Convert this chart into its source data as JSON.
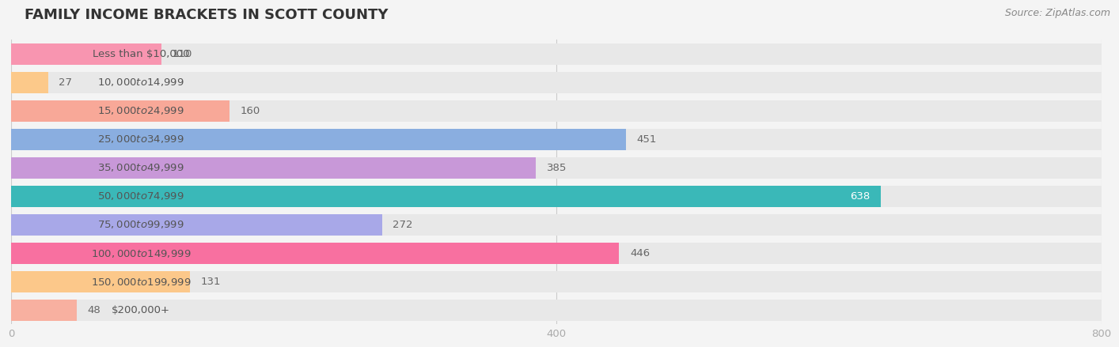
{
  "title": "FAMILY INCOME BRACKETS IN SCOTT COUNTY",
  "source": "Source: ZipAtlas.com",
  "categories": [
    "Less than $10,000",
    "$10,000 to $14,999",
    "$15,000 to $24,999",
    "$25,000 to $34,999",
    "$35,000 to $49,999",
    "$50,000 to $74,999",
    "$75,000 to $99,999",
    "$100,000 to $149,999",
    "$150,000 to $199,999",
    "$200,000+"
  ],
  "values": [
    110,
    27,
    160,
    451,
    385,
    638,
    272,
    446,
    131,
    48
  ],
  "bar_colors": [
    "#f895b0",
    "#fcc98a",
    "#f8a898",
    "#8aaee0",
    "#c898d8",
    "#3ab8b8",
    "#a8a8e8",
    "#f870a0",
    "#fcc88a",
    "#f8b0a0"
  ],
  "xlim": [
    0,
    800
  ],
  "xticks": [
    0,
    400,
    800
  ],
  "background_color": "#f4f4f4",
  "bar_bg_color": "#e8e8e8",
  "title_fontsize": 13,
  "label_fontsize": 9.5,
  "value_fontsize": 9.5,
  "source_fontsize": 9
}
